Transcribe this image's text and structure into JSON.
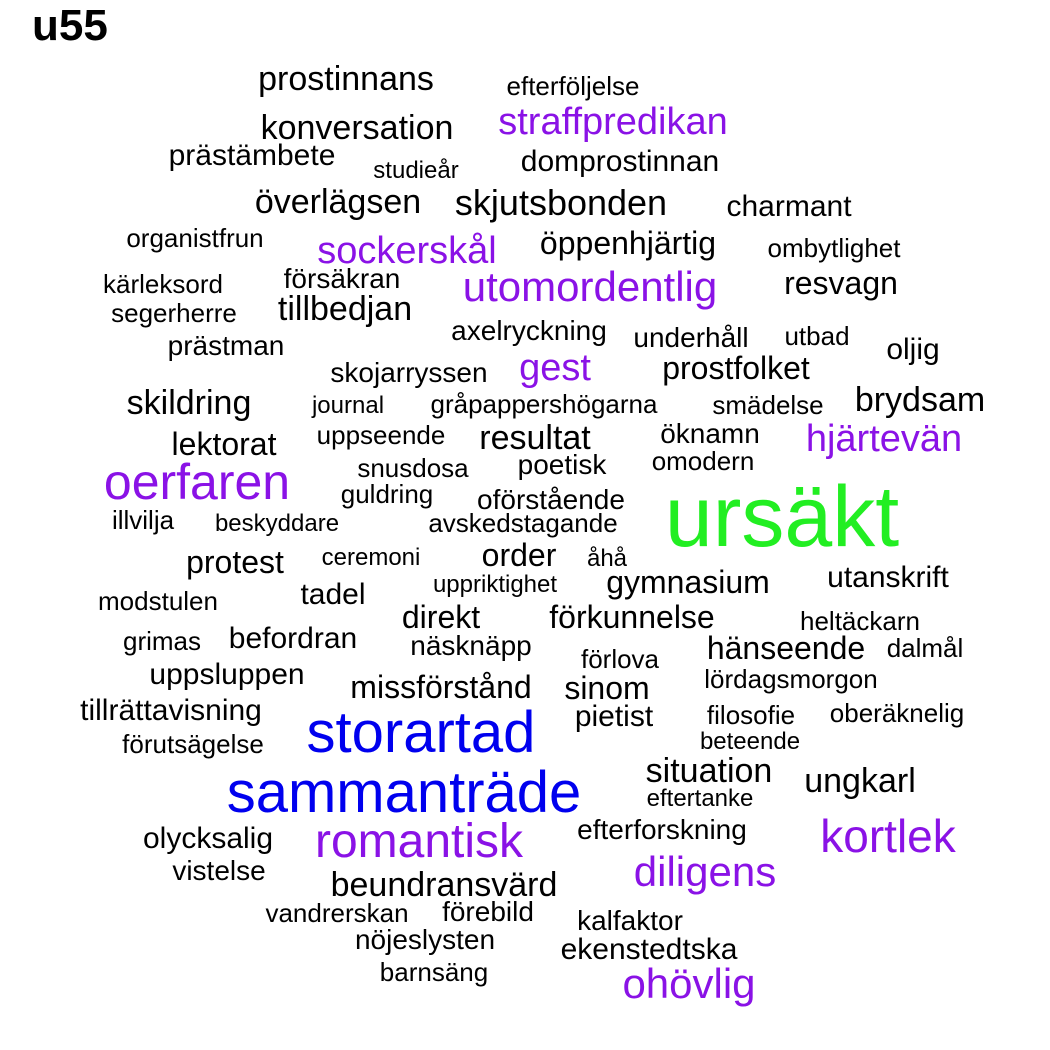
{
  "label": "u55",
  "colors": {
    "black": "#000000",
    "purple": "#8a12e6",
    "blue": "#0000ee",
    "green": "#22ee22"
  },
  "words": [
    {
      "text": "prostinnans",
      "color": "black"
    },
    {
      "text": "efterföljelse",
      "color": "black"
    },
    {
      "text": "straffpredikan",
      "color": "purple"
    },
    {
      "text": "konversation",
      "color": "black"
    },
    {
      "text": "prästämbete",
      "color": "black"
    },
    {
      "text": "studieår",
      "color": "black"
    },
    {
      "text": "domprostinnan",
      "color": "black"
    },
    {
      "text": "överlägsen",
      "color": "black"
    },
    {
      "text": "skjutsbonden",
      "color": "black"
    },
    {
      "text": "charmant",
      "color": "black"
    },
    {
      "text": "organistfrun",
      "color": "black"
    },
    {
      "text": "sockerskål",
      "color": "purple"
    },
    {
      "text": "öppenhjärtig",
      "color": "black"
    },
    {
      "text": "ombytlighet",
      "color": "black"
    },
    {
      "text": "kärleksord",
      "color": "black"
    },
    {
      "text": "försäkran",
      "color": "black"
    },
    {
      "text": "utomordentlig",
      "color": "purple"
    },
    {
      "text": "resvagn",
      "color": "black"
    },
    {
      "text": "segerherre",
      "color": "black"
    },
    {
      "text": "tillbedjan",
      "color": "black"
    },
    {
      "text": "axelryckning",
      "color": "black"
    },
    {
      "text": "underhåll",
      "color": "black"
    },
    {
      "text": "utbad",
      "color": "black"
    },
    {
      "text": "prästman",
      "color": "black"
    },
    {
      "text": "oljig",
      "color": "black"
    },
    {
      "text": "gest",
      "color": "purple"
    },
    {
      "text": "skojarryssen",
      "color": "black"
    },
    {
      "text": "prostfolket",
      "color": "black"
    },
    {
      "text": "skildring",
      "color": "black"
    },
    {
      "text": "brydsam",
      "color": "black"
    },
    {
      "text": "journal",
      "color": "black"
    },
    {
      "text": "gråpappershögarna",
      "color": "black"
    },
    {
      "text": "smädelse",
      "color": "black"
    },
    {
      "text": "lektorat",
      "color": "black"
    },
    {
      "text": "uppseende",
      "color": "black"
    },
    {
      "text": "resultat",
      "color": "black"
    },
    {
      "text": "öknamn",
      "color": "black"
    },
    {
      "text": "hjärtevän",
      "color": "purple"
    },
    {
      "text": "snusdosa",
      "color": "black"
    },
    {
      "text": "poetisk",
      "color": "black"
    },
    {
      "text": "omodern",
      "color": "black"
    },
    {
      "text": "oerfaren",
      "color": "purple"
    },
    {
      "text": "guldring",
      "color": "black"
    },
    {
      "text": "oförstående",
      "color": "black"
    },
    {
      "text": "ursäkt",
      "color": "green"
    },
    {
      "text": "illvilja",
      "color": "black"
    },
    {
      "text": "beskyddare",
      "color": "black"
    },
    {
      "text": "avskedstagande",
      "color": "black"
    },
    {
      "text": "protest",
      "color": "black"
    },
    {
      "text": "ceremoni",
      "color": "black"
    },
    {
      "text": "order",
      "color": "black"
    },
    {
      "text": "åhå",
      "color": "black"
    },
    {
      "text": "utanskrift",
      "color": "black"
    },
    {
      "text": "uppriktighet",
      "color": "black"
    },
    {
      "text": "gymnasium",
      "color": "black"
    },
    {
      "text": "tadel",
      "color": "black"
    },
    {
      "text": "modstulen",
      "color": "black"
    },
    {
      "text": "direkt",
      "color": "black"
    },
    {
      "text": "förkunnelse",
      "color": "black"
    },
    {
      "text": "heltäckarn",
      "color": "black"
    },
    {
      "text": "grimas",
      "color": "black"
    },
    {
      "text": "befordran",
      "color": "black"
    },
    {
      "text": "näsknäpp",
      "color": "black"
    },
    {
      "text": "hänseende",
      "color": "black"
    },
    {
      "text": "dalmål",
      "color": "black"
    },
    {
      "text": "förlova",
      "color": "black"
    },
    {
      "text": "uppsluppen",
      "color": "black"
    },
    {
      "text": "lördagsmorgon",
      "color": "black"
    },
    {
      "text": "missförstånd",
      "color": "black"
    },
    {
      "text": "sinom",
      "color": "black"
    },
    {
      "text": "tillrättavisning",
      "color": "black"
    },
    {
      "text": "pietist",
      "color": "black"
    },
    {
      "text": "filosofie",
      "color": "black"
    },
    {
      "text": "oberäknelig",
      "color": "black"
    },
    {
      "text": "storartad",
      "color": "blue"
    },
    {
      "text": "förutsägelse",
      "color": "black"
    },
    {
      "text": "beteende",
      "color": "black"
    },
    {
      "text": "situation",
      "color": "black"
    },
    {
      "text": "ungkarl",
      "color": "black"
    },
    {
      "text": "sammanträde",
      "color": "blue"
    },
    {
      "text": "eftertanke",
      "color": "black"
    },
    {
      "text": "efterforskning",
      "color": "black"
    },
    {
      "text": "kortlek",
      "color": "purple"
    },
    {
      "text": "olycksalig",
      "color": "black"
    },
    {
      "text": "romantisk",
      "color": "purple"
    },
    {
      "text": "diligens",
      "color": "purple"
    },
    {
      "text": "vistelse",
      "color": "black"
    },
    {
      "text": "beundransvärd",
      "color": "black"
    },
    {
      "text": "vandrerskan",
      "color": "black"
    },
    {
      "text": "förebild",
      "color": "black"
    },
    {
      "text": "kalfaktor",
      "color": "black"
    },
    {
      "text": "nöjeslysten",
      "color": "black"
    },
    {
      "text": "ekenstedtska",
      "color": "black"
    },
    {
      "text": "barnsäng",
      "color": "black"
    },
    {
      "text": "ohövlig",
      "color": "purple"
    }
  ]
}
